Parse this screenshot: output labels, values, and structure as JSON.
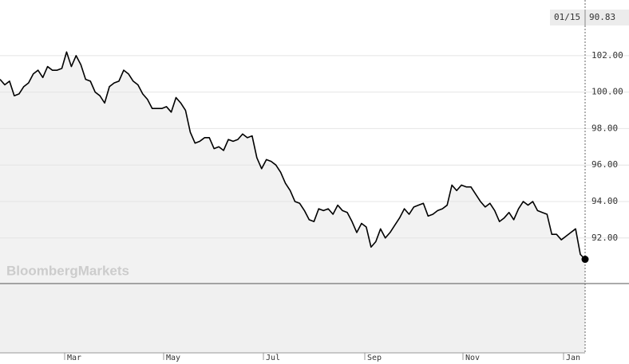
{
  "chart_data": {
    "type": "line",
    "watermark": "BloombergMarkets",
    "last_date": "01/15",
    "xticks": [
      "Mar",
      "May",
      "Jul",
      "Sep",
      "Nov",
      "Jan"
    ],
    "ylim": [
      89.5,
      105.05
    ],
    "yticks": [
      {
        "value": 92,
        "label": "92.00"
      },
      {
        "value": 94,
        "label": "94.00"
      },
      {
        "value": 96,
        "label": "96.00"
      },
      {
        "value": 98,
        "label": "98.00"
      },
      {
        "value": 100,
        "label": "100.00"
      },
      {
        "value": 102,
        "label": "102.00"
      }
    ],
    "grid": true,
    "color": "#000000",
    "values": [
      100.7,
      100.4,
      100.6,
      99.8,
      99.9,
      100.3,
      100.5,
      101.0,
      101.2,
      100.8,
      101.4,
      101.2,
      101.2,
      101.3,
      102.2,
      101.4,
      102.0,
      101.5,
      100.7,
      100.6,
      100.0,
      99.8,
      99.4,
      100.3,
      100.5,
      100.6,
      101.2,
      101.0,
      100.6,
      100.4,
      99.9,
      99.6,
      99.1,
      99.1,
      99.1,
      99.2,
      98.9,
      99.7,
      99.4,
      99.0,
      97.8,
      97.2,
      97.3,
      97.5,
      97.5,
      96.9,
      97.0,
      96.8,
      97.4,
      97.3,
      97.4,
      97.7,
      97.5,
      97.6,
      96.4,
      95.8,
      96.3,
      96.2,
      96.0,
      95.6,
      95.0,
      94.6,
      94.0,
      93.9,
      93.5,
      93.0,
      92.9,
      93.6,
      93.5,
      93.6,
      93.3,
      93.8,
      93.5,
      93.4,
      92.9,
      92.3,
      92.8,
      92.6,
      91.5,
      91.8,
      92.5,
      92.0,
      92.3,
      92.7,
      93.1,
      93.6,
      93.3,
      93.7,
      93.8,
      93.9,
      93.2,
      93.3,
      93.5,
      93.6,
      93.8,
      94.9,
      94.6,
      94.9,
      94.8,
      94.8,
      94.4,
      94.0,
      93.7,
      93.9,
      93.5,
      92.9,
      93.1,
      93.4,
      93.0,
      93.6,
      94.0,
      93.8,
      94.0,
      93.5,
      93.4,
      93.3,
      92.2,
      92.2,
      91.9,
      92.1,
      92.3,
      92.5,
      91.1,
      90.83
    ]
  }
}
